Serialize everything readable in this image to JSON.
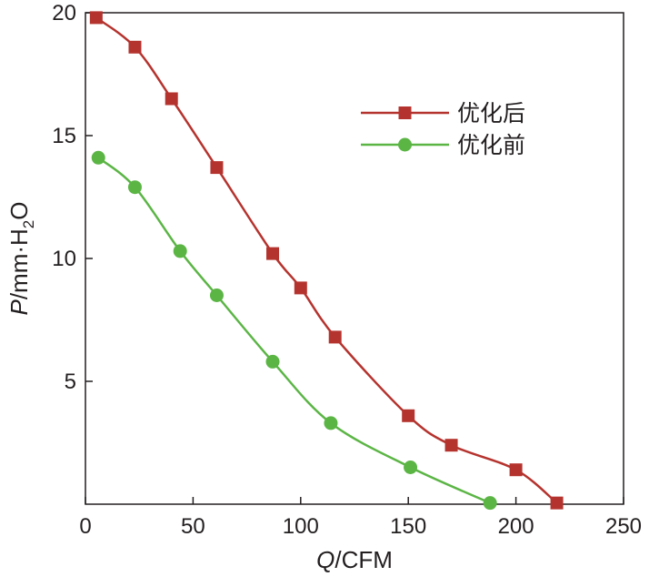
{
  "chart_data": {
    "type": "line",
    "title": "",
    "xlabel": {
      "italic": "Q",
      "rest": "/CFM"
    },
    "ylabel": {
      "italic": "P",
      "rest": "/mm·H",
      "sub": "2",
      "end": "O"
    },
    "xlim": [
      0,
      250
    ],
    "ylim": [
      0,
      20
    ],
    "xticks": [
      "0",
      "50",
      "100",
      "150",
      "200",
      "250"
    ],
    "yticks": [
      "5",
      "10",
      "15",
      "20"
    ],
    "grid": false,
    "legend_position": "top-right",
    "series": [
      {
        "name": "优化后",
        "color": "#b5332e",
        "marker": "square",
        "x": [
          5,
          23,
          40,
          61,
          87,
          100,
          116,
          150,
          170,
          200,
          219
        ],
        "y": [
          19.8,
          18.6,
          16.5,
          13.7,
          10.2,
          8.8,
          6.8,
          3.6,
          2.4,
          1.4,
          0.05
        ]
      },
      {
        "name": "优化前",
        "color": "#5bb545",
        "marker": "circle",
        "x": [
          6,
          23,
          44,
          61,
          87,
          114,
          151,
          188
        ],
        "y": [
          14.1,
          12.9,
          10.3,
          8.5,
          5.8,
          3.3,
          1.5,
          0.05
        ]
      }
    ]
  }
}
